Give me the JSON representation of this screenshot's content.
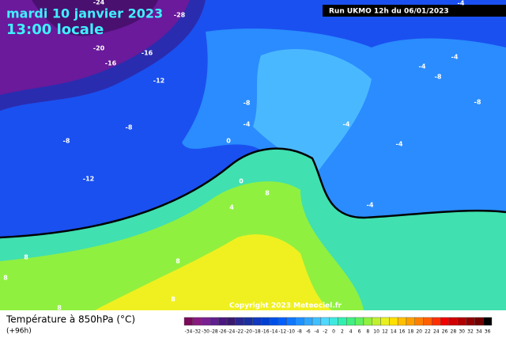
{
  "header": {
    "date": "mardi 10 janvier 2023",
    "time": "13:00 locale",
    "run": "Run UKMO 12h du 06/01/2023"
  },
  "map": {
    "contour_labels": [
      -24,
      -28,
      -20,
      -16,
      -16,
      -12,
      -8,
      -4,
      0,
      -8,
      -8,
      -12,
      0,
      4,
      8,
      8,
      8,
      8,
      8,
      8,
      -4,
      -4,
      -8,
      -8,
      -4,
      -4,
      -4,
      -4
    ]
  },
  "copyright": "Copyright 2023 Meteociel.fr",
  "legend": {
    "title": "Température à 850hPa (°C)",
    "lead": "(+96h)",
    "scale": [
      -34,
      -32,
      -30,
      -28,
      -26,
      -24,
      -22,
      -20,
      -18,
      -16,
      -14,
      -12,
      -10,
      -8,
      -6,
      -4,
      -2,
      0,
      2,
      4,
      6,
      8,
      10,
      12,
      14,
      16,
      18,
      20,
      22,
      24,
      26,
      28,
      30,
      32,
      34,
      36
    ],
    "colors": [
      "#7a0a5a",
      "#8a1a80",
      "#7a2090",
      "#602090",
      "#4a1880",
      "#3a1a70",
      "#2a2890",
      "#1a30a0",
      "#1038c0",
      "#0040d0",
      "#0050e8",
      "#0060ff",
      "#1078ff",
      "#2090ff",
      "#30a8ff",
      "#40c0ff",
      "#50d8ff",
      "#40e8e0",
      "#30f0b0",
      "#40f080",
      "#60f060",
      "#90f040",
      "#c0f030",
      "#e8f020",
      "#ffe000",
      "#ffc000",
      "#ffa000",
      "#ff8000",
      "#ff6000",
      "#ff3000",
      "#f00000",
      "#d00000",
      "#b00000",
      "#900000",
      "#700000",
      "#000000"
    ]
  }
}
